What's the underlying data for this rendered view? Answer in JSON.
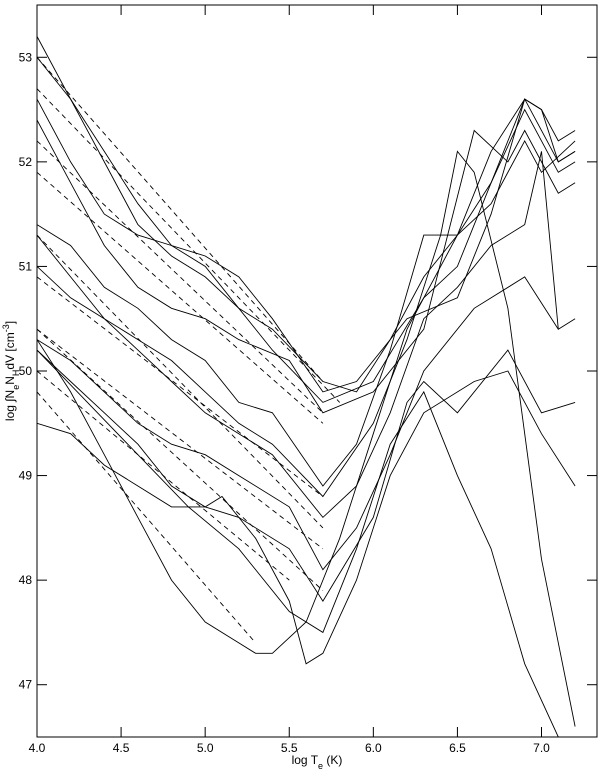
{
  "chart_data": {
    "type": "line",
    "color": "#000000",
    "x_label": [
      {
        "text": "log T"
      },
      {
        "text": "e",
        "sub": true
      },
      {
        "text": " (K)"
      }
    ],
    "y_label": [
      {
        "text": "log ∫N"
      },
      {
        "text": "e",
        "sub": true
      },
      {
        "text": "N"
      },
      {
        "text": "H",
        "sub": true
      },
      {
        "text": "dV [cm"
      },
      {
        "text": "-3",
        "sup": true
      },
      {
        "text": "]"
      }
    ],
    "xlim": [
      4.0,
      7.33
    ],
    "ylim": [
      46.5,
      53.5
    ],
    "xticks": [
      {
        "value": 4.0,
        "label": "4.0"
      },
      4.5,
      {
        "value": 5.0,
        "label": "5.0"
      },
      5.5,
      {
        "value": 6.0,
        "label": "6.0"
      },
      6.5,
      {
        "value": 7.0,
        "label": "7.0"
      }
    ],
    "yticks": [
      47,
      48,
      49,
      50,
      51,
      52,
      53
    ],
    "series": [
      {
        "x": [
          4.0,
          4.2,
          4.4,
          4.6,
          4.8,
          5.0,
          5.2,
          5.4,
          5.7,
          5.9,
          6.1,
          6.3,
          6.5,
          6.7,
          6.9,
          7.0,
          7.1,
          7.2
        ],
        "values": [
          53.2,
          52.6,
          52.0,
          51.4,
          51.1,
          50.9,
          50.6,
          50.4,
          49.9,
          49.8,
          50.3,
          50.9,
          51.3,
          51.8,
          52.6,
          52.5,
          52.2,
          52.3
        ]
      },
      {
        "x": [
          4.0,
          4.2,
          4.4,
          4.6,
          4.8,
          5.0,
          5.2,
          5.4,
          5.7,
          5.9,
          6.2,
          6.5,
          6.7,
          6.9,
          7.0,
          7.1,
          7.2
        ],
        "values": [
          53.0,
          52.6,
          52.1,
          51.6,
          51.2,
          51.1,
          50.9,
          50.5,
          49.8,
          49.9,
          50.5,
          50.7,
          51.5,
          52.6,
          52.5,
          52.0,
          52.1
        ]
      },
      {
        "x": [
          4.0,
          4.2,
          4.4,
          4.6,
          4.8,
          5.0,
          5.2,
          5.4,
          5.7,
          6.0,
          6.3,
          6.5,
          6.7,
          6.9,
          7.1,
          7.2
        ],
        "values": [
          52.6,
          52.0,
          51.5,
          51.3,
          51.2,
          51.0,
          50.6,
          50.2,
          49.7,
          49.9,
          50.7,
          51.0,
          51.8,
          52.5,
          51.9,
          52.0
        ]
      },
      {
        "x": [
          4.0,
          4.2,
          4.4,
          4.6,
          4.8,
          5.0,
          5.2,
          5.5,
          5.7,
          6.0,
          6.3,
          6.6,
          6.8,
          6.9,
          7.1,
          7.2
        ],
        "values": [
          52.4,
          51.8,
          51.2,
          50.8,
          50.6,
          50.5,
          50.3,
          50.1,
          49.6,
          49.8,
          50.4,
          52.3,
          52.0,
          52.3,
          51.7,
          51.8
        ]
      },
      {
        "x": [
          4.0,
          4.2,
          4.4,
          4.6,
          4.8,
          5.0,
          5.2,
          5.4,
          5.7,
          5.9,
          6.1,
          6.3,
          6.5,
          6.7,
          6.9,
          7.0,
          7.2
        ],
        "values": [
          51.4,
          51.2,
          50.8,
          50.6,
          50.3,
          50.1,
          49.7,
          49.6,
          48.9,
          49.3,
          50.2,
          51.3,
          51.3,
          51.6,
          52.2,
          51.9,
          52.2
        ]
      },
      {
        "x": [
          4.0,
          4.2,
          4.4,
          4.6,
          4.8,
          5.0,
          5.2,
          5.4,
          5.7,
          5.9,
          6.1,
          6.3,
          6.5,
          6.7,
          6.9,
          7.0,
          7.1
        ],
        "values": [
          51.0,
          50.7,
          50.5,
          50.2,
          49.9,
          49.6,
          49.4,
          49.2,
          48.6,
          48.9,
          49.6,
          50.5,
          50.8,
          51.2,
          51.4,
          52.1,
          50.4
        ]
      },
      {
        "x": [
          4.0,
          4.2,
          4.4,
          4.6,
          4.8,
          5.0,
          5.2,
          5.5,
          5.7,
          5.9,
          6.1,
          6.3,
          6.6,
          6.9,
          7.1,
          7.2
        ],
        "values": [
          50.3,
          50.1,
          49.8,
          49.5,
          49.3,
          49.2,
          49.0,
          48.7,
          48.1,
          48.5,
          49.2,
          50.0,
          50.6,
          50.9,
          50.4,
          50.5
        ]
      },
      {
        "x": [
          4.0,
          4.2,
          4.4,
          4.6,
          4.8,
          5.0,
          5.2,
          5.5,
          5.7,
          6.0,
          6.2,
          6.3,
          6.5,
          6.8,
          7.0,
          7.2
        ],
        "values": [
          50.2,
          49.9,
          49.6,
          49.3,
          48.9,
          48.7,
          48.6,
          48.3,
          47.8,
          48.6,
          49.7,
          49.9,
          49.6,
          50.2,
          49.6,
          49.7
        ]
      },
      {
        "x": [
          4.0,
          4.2,
          4.4,
          4.6,
          4.8,
          5.0,
          5.2,
          5.3,
          5.4,
          5.6,
          5.8,
          6.0,
          6.2,
          6.5,
          6.7,
          6.9,
          7.1,
          7.2
        ],
        "values": [
          50.3,
          49.8,
          49.2,
          48.6,
          48.0,
          47.6,
          47.4,
          47.3,
          47.3,
          47.6,
          48.4,
          49.4,
          50.4,
          51.3,
          52.1,
          52.6,
          52.0,
          52.1
        ]
      },
      {
        "x": [
          4.0,
          4.2,
          4.4,
          4.6,
          4.8,
          5.0,
          5.1,
          5.3,
          5.5,
          5.6,
          5.7,
          5.9,
          6.1,
          6.3,
          6.6,
          6.8,
          7.0,
          7.2
        ],
        "values": [
          49.5,
          49.4,
          49.1,
          48.9,
          48.7,
          48.7,
          48.8,
          48.4,
          47.8,
          47.2,
          47.3,
          48.0,
          49.0,
          49.6,
          49.9,
          50.0,
          49.4,
          48.9
        ]
      },
      {
        "x": [
          4.0,
          4.3,
          4.6,
          4.9,
          5.2,
          5.5,
          5.7,
          5.9,
          6.1,
          6.3,
          6.5,
          6.7,
          6.9,
          7.1
        ],
        "values": [
          50.2,
          49.7,
          49.2,
          48.7,
          48.3,
          47.7,
          47.5,
          48.3,
          49.3,
          49.8,
          49.0,
          48.3,
          47.2,
          46.5
        ]
      },
      {
        "x": [
          4.0,
          4.2,
          4.4,
          4.6,
          4.8,
          5.0,
          5.2,
          5.4,
          5.7,
          6.0,
          6.2,
          6.4,
          6.5,
          6.6,
          6.8,
          7.0,
          7.2
        ],
        "values": [
          51.3,
          50.9,
          50.5,
          50.3,
          50.1,
          49.8,
          49.5,
          49.3,
          48.8,
          49.5,
          50.3,
          51.3,
          52.1,
          51.9,
          50.6,
          48.2,
          46.6
        ]
      },
      {
        "x": [
          4.0,
          5.7
        ],
        "values": [
          53.0,
          49.9
        ],
        "dashed": true
      },
      {
        "x": [
          4.0,
          5.8
        ],
        "values": [
          52.7,
          49.7
        ],
        "dashed": true
      },
      {
        "x": [
          4.0,
          5.7
        ],
        "values": [
          52.2,
          49.6
        ],
        "dashed": true
      },
      {
        "x": [
          4.0,
          5.7
        ],
        "values": [
          51.9,
          49.5
        ],
        "dashed": true
      },
      {
        "x": [
          4.0,
          5.7
        ],
        "values": [
          51.3,
          48.5
        ],
        "dashed": true
      },
      {
        "x": [
          4.0,
          5.7
        ],
        "values": [
          50.9,
          48.8
        ],
        "dashed": true
      },
      {
        "x": [
          4.0,
          5.7
        ],
        "values": [
          50.4,
          48.3
        ],
        "dashed": true
      },
      {
        "x": [
          4.0,
          5.7
        ],
        "values": [
          50.4,
          47.9
        ],
        "dashed": true
      },
      {
        "x": [
          4.0,
          5.5
        ],
        "values": [
          50.0,
          48.0
        ],
        "dashed": true
      },
      {
        "x": [
          4.0,
          5.3
        ],
        "values": [
          49.8,
          47.4
        ],
        "dashed": true
      }
    ]
  }
}
